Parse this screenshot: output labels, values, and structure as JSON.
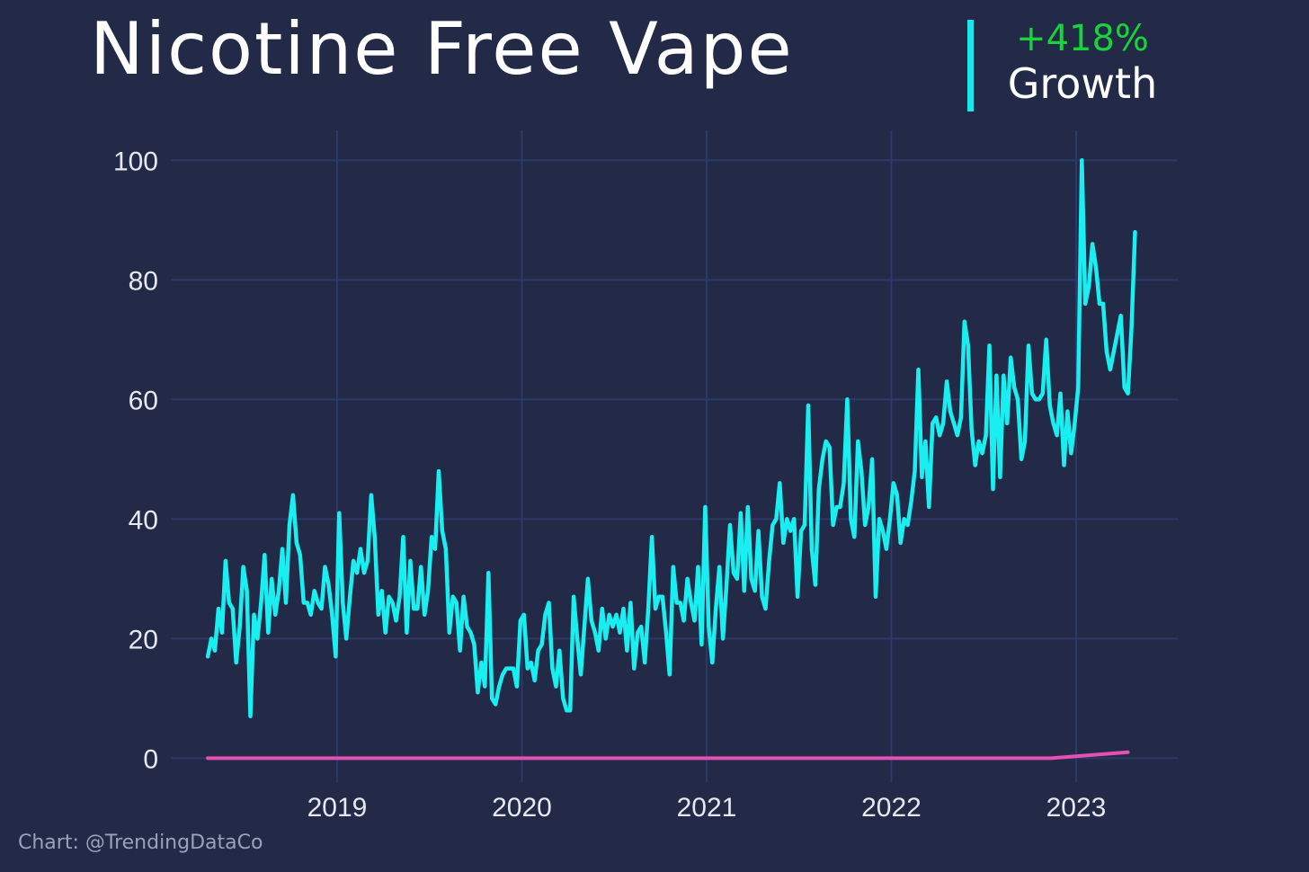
{
  "header": {
    "title": "Nicotine Free Vape",
    "growth_value": "+418%",
    "growth_label": "Growth"
  },
  "footer": {
    "credit": "Chart: @TrendingDataCo"
  },
  "colors": {
    "background": "#222a48",
    "grid": "#2d3966",
    "main_series": "#19eef0",
    "baseline_series": "#e84fb4",
    "growth_positive": "#19d33a"
  },
  "chart_data": {
    "type": "line",
    "title": "Nicotine Free Vape",
    "xlabel": "",
    "ylabel": "",
    "xlim": [
      2018.1,
      2023.55
    ],
    "ylim": [
      -4,
      105
    ],
    "y_ticks": [
      0,
      20,
      40,
      60,
      80,
      100
    ],
    "x_ticks": [
      2019,
      2020,
      2021,
      2022,
      2023
    ],
    "grid": true,
    "legend": "none",
    "series": [
      {
        "x_start": 2018.3,
        "x_step": 0.01923,
        "values": [
          17,
          20,
          18,
          25,
          21,
          33,
          26,
          25,
          16,
          22,
          32,
          28,
          7,
          24,
          20,
          26,
          34,
          21,
          30,
          24,
          28,
          35,
          26,
          39,
          44,
          36,
          34,
          26,
          26,
          24,
          28,
          26,
          25,
          32,
          29,
          24,
          17,
          41,
          26,
          20,
          27,
          33,
          31,
          35,
          31,
          33,
          44,
          37,
          24,
          28,
          21,
          27,
          26,
          23,
          27,
          37,
          21,
          33,
          25,
          25,
          32,
          24,
          28,
          37,
          35,
          48,
          38,
          35,
          21,
          27,
          26,
          18,
          27,
          22,
          21,
          19,
          11,
          16,
          12,
          31,
          10,
          9,
          12,
          14,
          15,
          15,
          15,
          12,
          23,
          24,
          15,
          16,
          13,
          18,
          19,
          24,
          26,
          15,
          12,
          18,
          10,
          8,
          8,
          27,
          20,
          14,
          22,
          30,
          23,
          21,
          18,
          25,
          20,
          24,
          22,
          24,
          21,
          25,
          18,
          26,
          15,
          21,
          22,
          16,
          25,
          37,
          25,
          27,
          27,
          21,
          14,
          32,
          26,
          26,
          23,
          30,
          26,
          23,
          32,
          19,
          42,
          22,
          16,
          25,
          32,
          20,
          29,
          39,
          31,
          30,
          41,
          28,
          42,
          30,
          28,
          38,
          27,
          25,
          33,
          39,
          40,
          46,
          36,
          40,
          38,
          40,
          27,
          38,
          39,
          59,
          35,
          29,
          45,
          50,
          53,
          52,
          39,
          42,
          42,
          46,
          60,
          40,
          37,
          53,
          48,
          39,
          42,
          50,
          27,
          40,
          38,
          35,
          40,
          46,
          44,
          36,
          40,
          39,
          43,
          48,
          65,
          47,
          53,
          42,
          56,
          57,
          54,
          56,
          63,
          58,
          56,
          54,
          57,
          73,
          69,
          55,
          49,
          53,
          51,
          54,
          69,
          45,
          64,
          47,
          64,
          56,
          67,
          62,
          60,
          50,
          53,
          69,
          61,
          60,
          60,
          61,
          70,
          59,
          56,
          54,
          61,
          49,
          58,
          51,
          56,
          62,
          100,
          76,
          79,
          86,
          82,
          76,
          76,
          68,
          65,
          68,
          71,
          74,
          62,
          61,
          72,
          88
        ]
      },
      {
        "x_start": 2018.3,
        "x_end": 2023.28,
        "values_note": "",
        "values": [
          0,
          0,
          0,
          0,
          0,
          0,
          0,
          0,
          0,
          0,
          0,
          0,
          1
        ]
      }
    ]
  }
}
